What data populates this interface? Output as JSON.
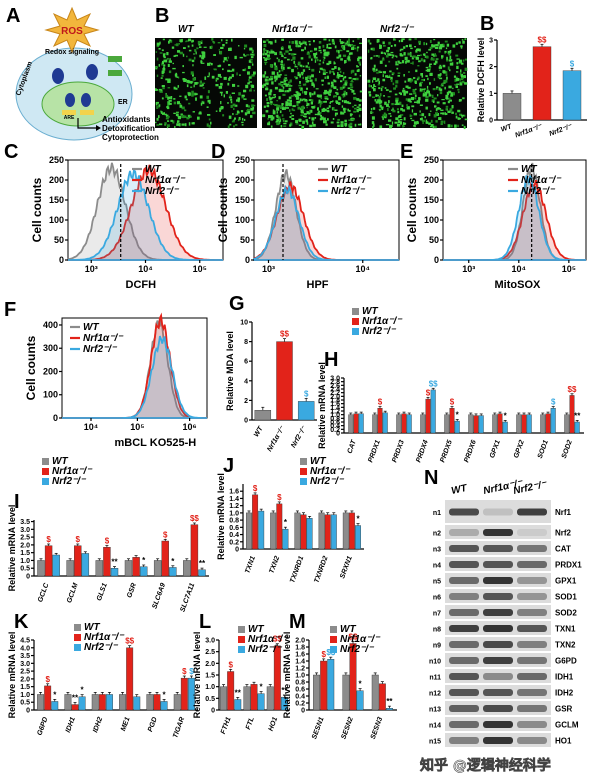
{
  "figure": {
    "watermark": "知乎 @逻辑神经科学",
    "colors": {
      "WT": "#8c8c8c",
      "Nrf1a": "#e2231a",
      "Nrf2": "#3aa9e0",
      "green": "#39c43a"
    },
    "legend": {
      "wt": "WT",
      "nrf1a": "Nrf1α⁻/⁻",
      "nrf2": "Nrf2⁻/⁻"
    }
  },
  "panel_a": {
    "label": "A",
    "ros": "ROS",
    "redox": "Redox signaling",
    "cytoplasm": "Cytoplasm",
    "er": "ER",
    "are": "ARE",
    "outcomes": [
      "Antioxidants",
      "Detoxification",
      "Cytoprotection"
    ]
  },
  "panel_b_images": {
    "label": "B",
    "titles": [
      "WT",
      "Nrf1α⁻/⁻",
      "Nrf2⁻/⁻"
    ]
  },
  "flow": [
    {
      "label": "C",
      "xlabel": "DCFH",
      "ylabel": "Cell counts",
      "yticks": [
        "0",
        "50",
        "100",
        "150",
        "200",
        "250"
      ],
      "xticks": [
        "10³",
        "10⁴",
        "10⁵"
      ]
    },
    {
      "label": "D",
      "xlabel": "HPF",
      "ylabel": "Cell counts",
      "yticks": [
        "0",
        "50",
        "100",
        "150",
        "200",
        "250"
      ],
      "xticks": [
        "10³",
        "10⁴"
      ]
    },
    {
      "label": "E",
      "xlabel": "MitoSOX",
      "ylabel": "Cell counts",
      "yticks": [
        "0",
        "50",
        "100",
        "150",
        "200",
        "250"
      ],
      "xticks": [
        "10³",
        "10⁴",
        "10⁵"
      ]
    },
    {
      "label": "F",
      "xlabel": "mBCL  KO525-H",
      "ylabel": "Cell counts",
      "yticks": [
        "0",
        "100",
        "200",
        "300",
        "400"
      ],
      "xticks": [
        "10⁴",
        "10⁵",
        "10⁶"
      ]
    }
  ],
  "blot": {
    "label": "N",
    "lanes": [
      "WT",
      "Nrf1α⁻/⁻",
      "Nrf2⁻/⁻"
    ],
    "rows": [
      {
        "id": "n1",
        "name": "Nrf1",
        "i": [
          0.75,
          0.2,
          0.8
        ],
        "tall": 1
      },
      {
        "id": "n2",
        "name": "Nrf2",
        "i": [
          0.3,
          0.85,
          0.15
        ]
      },
      {
        "id": "n3",
        "name": "CAT",
        "i": [
          0.7,
          0.7,
          0.55
        ]
      },
      {
        "id": "n4",
        "name": "PRDX1",
        "i": [
          0.7,
          0.7,
          0.6
        ]
      },
      {
        "id": "n5",
        "name": "GPX1",
        "i": [
          0.6,
          0.85,
          0.4
        ]
      },
      {
        "id": "n6",
        "name": "SOD1",
        "i": [
          0.5,
          0.7,
          0.4
        ]
      },
      {
        "id": "n7",
        "name": "SOD2",
        "i": [
          0.6,
          0.8,
          0.5
        ]
      },
      {
        "id": "n8",
        "name": "TXN1",
        "i": [
          0.8,
          0.85,
          0.7
        ]
      },
      {
        "id": "n9",
        "name": "TXN2",
        "i": [
          0.6,
          0.75,
          0.5
        ]
      },
      {
        "id": "n10",
        "name": "G6PD",
        "i": [
          0.6,
          0.8,
          0.55
        ]
      },
      {
        "id": "n11",
        "name": "IDH1",
        "i": [
          0.7,
          0.45,
          0.6
        ]
      },
      {
        "id": "n12",
        "name": "IDH2",
        "i": [
          0.7,
          0.7,
          0.55
        ]
      },
      {
        "id": "n13",
        "name": "GSR",
        "i": [
          0.65,
          0.75,
          0.55
        ]
      },
      {
        "id": "n14",
        "name": "GCLM",
        "i": [
          0.6,
          0.85,
          0.45
        ]
      },
      {
        "id": "n15",
        "name": "HO1",
        "i": [
          0.5,
          0.85,
          0.45
        ]
      }
    ]
  },
  "chart_data": [
    {
      "id": "B",
      "type": "bar",
      "title": "B",
      "ylabel": "Relative DCFH level",
      "ylim": [
        0,
        3
      ],
      "yticks": [
        "0",
        "1",
        "2",
        "3"
      ],
      "categories": [
        "WT",
        "Nrf1α⁻/⁻",
        "Nrf2⁻/⁻"
      ],
      "values": [
        1.0,
        2.75,
        1.85
      ],
      "marks": [
        "",
        "$$",
        "$"
      ]
    },
    {
      "id": "G",
      "type": "bar",
      "title": "G",
      "ylabel": "Relative MDA level",
      "ylim": [
        0,
        10
      ],
      "yticks": [
        "0",
        "2",
        "4",
        "6",
        "8",
        "10"
      ],
      "categories": [
        "WT",
        "Nrf1α⁻/⁻",
        "Nrf2⁻/⁻"
      ],
      "values": [
        1.0,
        8.0,
        1.9
      ],
      "marks": [
        "",
        "$$",
        "$"
      ]
    },
    {
      "id": "H",
      "type": "bar",
      "title": "H",
      "ylabel": "Relative mRNA level",
      "ylim": [
        0,
        3.0
      ],
      "yticks": [
        "0",
        "0.2",
        "0.4",
        "0.6",
        "0.8",
        "1.0",
        "1.2",
        "1.4",
        "1.6",
        "1.8",
        "2.0",
        "2.2",
        "2.4",
        "2.6",
        "2.8",
        "3.0"
      ],
      "categories": [
        "CAT",
        "PRDX1",
        "PRDX3",
        "PRDX4",
        "PRDX5",
        "PRDX6",
        "GPX1",
        "GPX2",
        "SOD1",
        "SOD2"
      ],
      "series": [
        {
          "name": "WT",
          "values": [
            1,
            1,
            1,
            1,
            1,
            1,
            1,
            1,
            1,
            1
          ]
        },
        {
          "name": "Nrf1α⁻/⁻",
          "values": [
            1.05,
            1.35,
            1.05,
            1.85,
            1.35,
            0.95,
            1.05,
            1.0,
            1.05,
            2.05
          ]
        },
        {
          "name": "Nrf2⁻/⁻",
          "values": [
            1.05,
            1.1,
            1.0,
            2.35,
            0.65,
            0.95,
            0.6,
            1.0,
            1.35,
            0.6
          ]
        }
      ],
      "marks": [
        [
          "",
          "",
          ""
        ],
        [
          "",
          "$",
          ""
        ],
        [
          "",
          "",
          ""
        ],
        [
          "",
          "$",
          "$$"
        ],
        [
          "",
          "$",
          "*"
        ],
        [
          "",
          "",
          ""
        ],
        [
          "",
          "",
          "*"
        ],
        [
          "",
          "",
          ""
        ],
        [
          "",
          "",
          "$"
        ],
        [
          "",
          "$$",
          "**"
        ]
      ]
    },
    {
      "id": "I",
      "type": "bar",
      "title": "I",
      "ylabel": "Relative mRNA level",
      "ylim": [
        0,
        3.6
      ],
      "yticks": [
        "0",
        "0.5",
        "1.0",
        "1.5",
        "2.0",
        "2.5",
        "3.0",
        "3.5"
      ],
      "categories": [
        "GCLC",
        "GCLM",
        "GLS1",
        "GSR",
        "SLC6A9",
        "SLC7A11"
      ],
      "series": [
        {
          "name": "WT",
          "values": [
            1,
            1,
            1,
            1,
            1,
            1
          ]
        },
        {
          "name": "Nrf1α⁻/⁻",
          "values": [
            1.95,
            1.95,
            1.85,
            1.2,
            2.25,
            3.3
          ]
        },
        {
          "name": "Nrf2⁻/⁻",
          "values": [
            1.35,
            1.45,
            0.5,
            0.6,
            0.55,
            0.4
          ]
        }
      ],
      "marks": [
        [
          "",
          "$",
          ""
        ],
        [
          "",
          "$",
          ""
        ],
        [
          "",
          "$",
          "**"
        ],
        [
          "",
          "",
          "*"
        ],
        [
          "",
          "$",
          "*"
        ],
        [
          "",
          "$$",
          "**"
        ]
      ]
    },
    {
      "id": "J",
      "type": "bar",
      "title": "J",
      "ylabel": "Relative mRNA level",
      "ylim": [
        0,
        1.8
      ],
      "yticks": [
        "0",
        "0.2",
        "0.4",
        "0.6",
        "0.8",
        "1.0",
        "1.2",
        "1.4",
        "1.6"
      ],
      "categories": [
        "TXN1",
        "TXN2",
        "TXNRD1",
        "TXNRD2",
        "SRXN1"
      ],
      "series": [
        {
          "name": "WT",
          "values": [
            1,
            1,
            1,
            1,
            1
          ]
        },
        {
          "name": "Nrf1α⁻/⁻",
          "values": [
            1.5,
            1.25,
            0.95,
            0.95,
            1.0
          ]
        },
        {
          "name": "Nrf2⁻/⁻",
          "values": [
            1.05,
            0.55,
            0.85,
            0.95,
            0.65
          ]
        }
      ],
      "marks": [
        [
          "",
          "$",
          ""
        ],
        [
          "",
          "$",
          "*"
        ],
        [
          "",
          "",
          ""
        ],
        [
          "",
          "",
          ""
        ],
        [
          "",
          "",
          "*"
        ]
      ]
    },
    {
      "id": "K",
      "type": "bar",
      "title": "K",
      "ylabel": "Relative mRNA level",
      "ylim": [
        0,
        4.5
      ],
      "yticks": [
        "0",
        "0.5",
        "1.0",
        "1.5",
        "2.0",
        "2.5",
        "3.0",
        "3.5",
        "4.0",
        "4.5"
      ],
      "categories": [
        "G6PD",
        "IDH1",
        "IDH2",
        "ME1",
        "PGD",
        "TIGAR"
      ],
      "series": [
        {
          "name": "WT",
          "values": [
            1,
            1,
            1,
            1,
            1,
            1
          ]
        },
        {
          "name": "Nrf1α⁻/⁻",
          "values": [
            1.55,
            0.35,
            1.0,
            4.0,
            1.0,
            2.05
          ]
        },
        {
          "name": "Nrf2⁻/⁻",
          "values": [
            0.55,
            0.85,
            1.0,
            0.85,
            0.55,
            2.05
          ]
        }
      ],
      "marks": [
        [
          "",
          "$",
          "*"
        ],
        [
          "",
          "**",
          "*"
        ],
        [
          "",
          "",
          ""
        ],
        [
          "",
          "$$",
          ""
        ],
        [
          "",
          "",
          "*"
        ],
        [
          "",
          "$",
          "$"
        ]
      ]
    },
    {
      "id": "L",
      "type": "bar",
      "title": "L",
      "ylabel": "Relative mRNA level",
      "ylim": [
        0,
        3.0
      ],
      "yticks": [
        "0",
        "0.5",
        "1.0",
        "1.5",
        "2.0",
        "2.5",
        "3.0"
      ],
      "categories": [
        "FTH1",
        "FTL",
        "HO1"
      ],
      "series": [
        {
          "name": "WT",
          "values": [
            1,
            1,
            1
          ]
        },
        {
          "name": "Nrf1α⁻/⁻",
          "values": [
            1.65,
            1.1,
            2.75
          ]
        },
        {
          "name": "Nrf2⁻/⁻",
          "values": [
            0.45,
            0.7,
            0.55
          ]
        }
      ],
      "marks": [
        [
          "",
          "$",
          "**"
        ],
        [
          "",
          "",
          "*"
        ],
        [
          "",
          "$$",
          "**"
        ]
      ]
    },
    {
      "id": "M",
      "type": "bar",
      "title": "M",
      "ylabel": "Relative mRNA level",
      "ylim": [
        0,
        2.0
      ],
      "yticks": [
        "0",
        "0.2",
        "0.4",
        "0.6",
        "0.8",
        "1.0",
        "1.2",
        "1.4",
        "1.6",
        "1.8",
        "2.0"
      ],
      "categories": [
        "SESN1",
        "SESN2",
        "SESN3"
      ],
      "series": [
        {
          "name": "WT",
          "values": [
            1,
            1,
            1
          ]
        },
        {
          "name": "Nrf1α⁻/⁻",
          "values": [
            1.4,
            1.9,
            0.75
          ]
        },
        {
          "name": "Nrf2⁻/⁻",
          "values": [
            1.45,
            0.55,
            0.05
          ]
        }
      ],
      "marks": [
        [
          "",
          "$",
          "$$"
        ],
        [
          "",
          "$$",
          "*"
        ],
        [
          "",
          "",
          "**"
        ]
      ]
    }
  ]
}
